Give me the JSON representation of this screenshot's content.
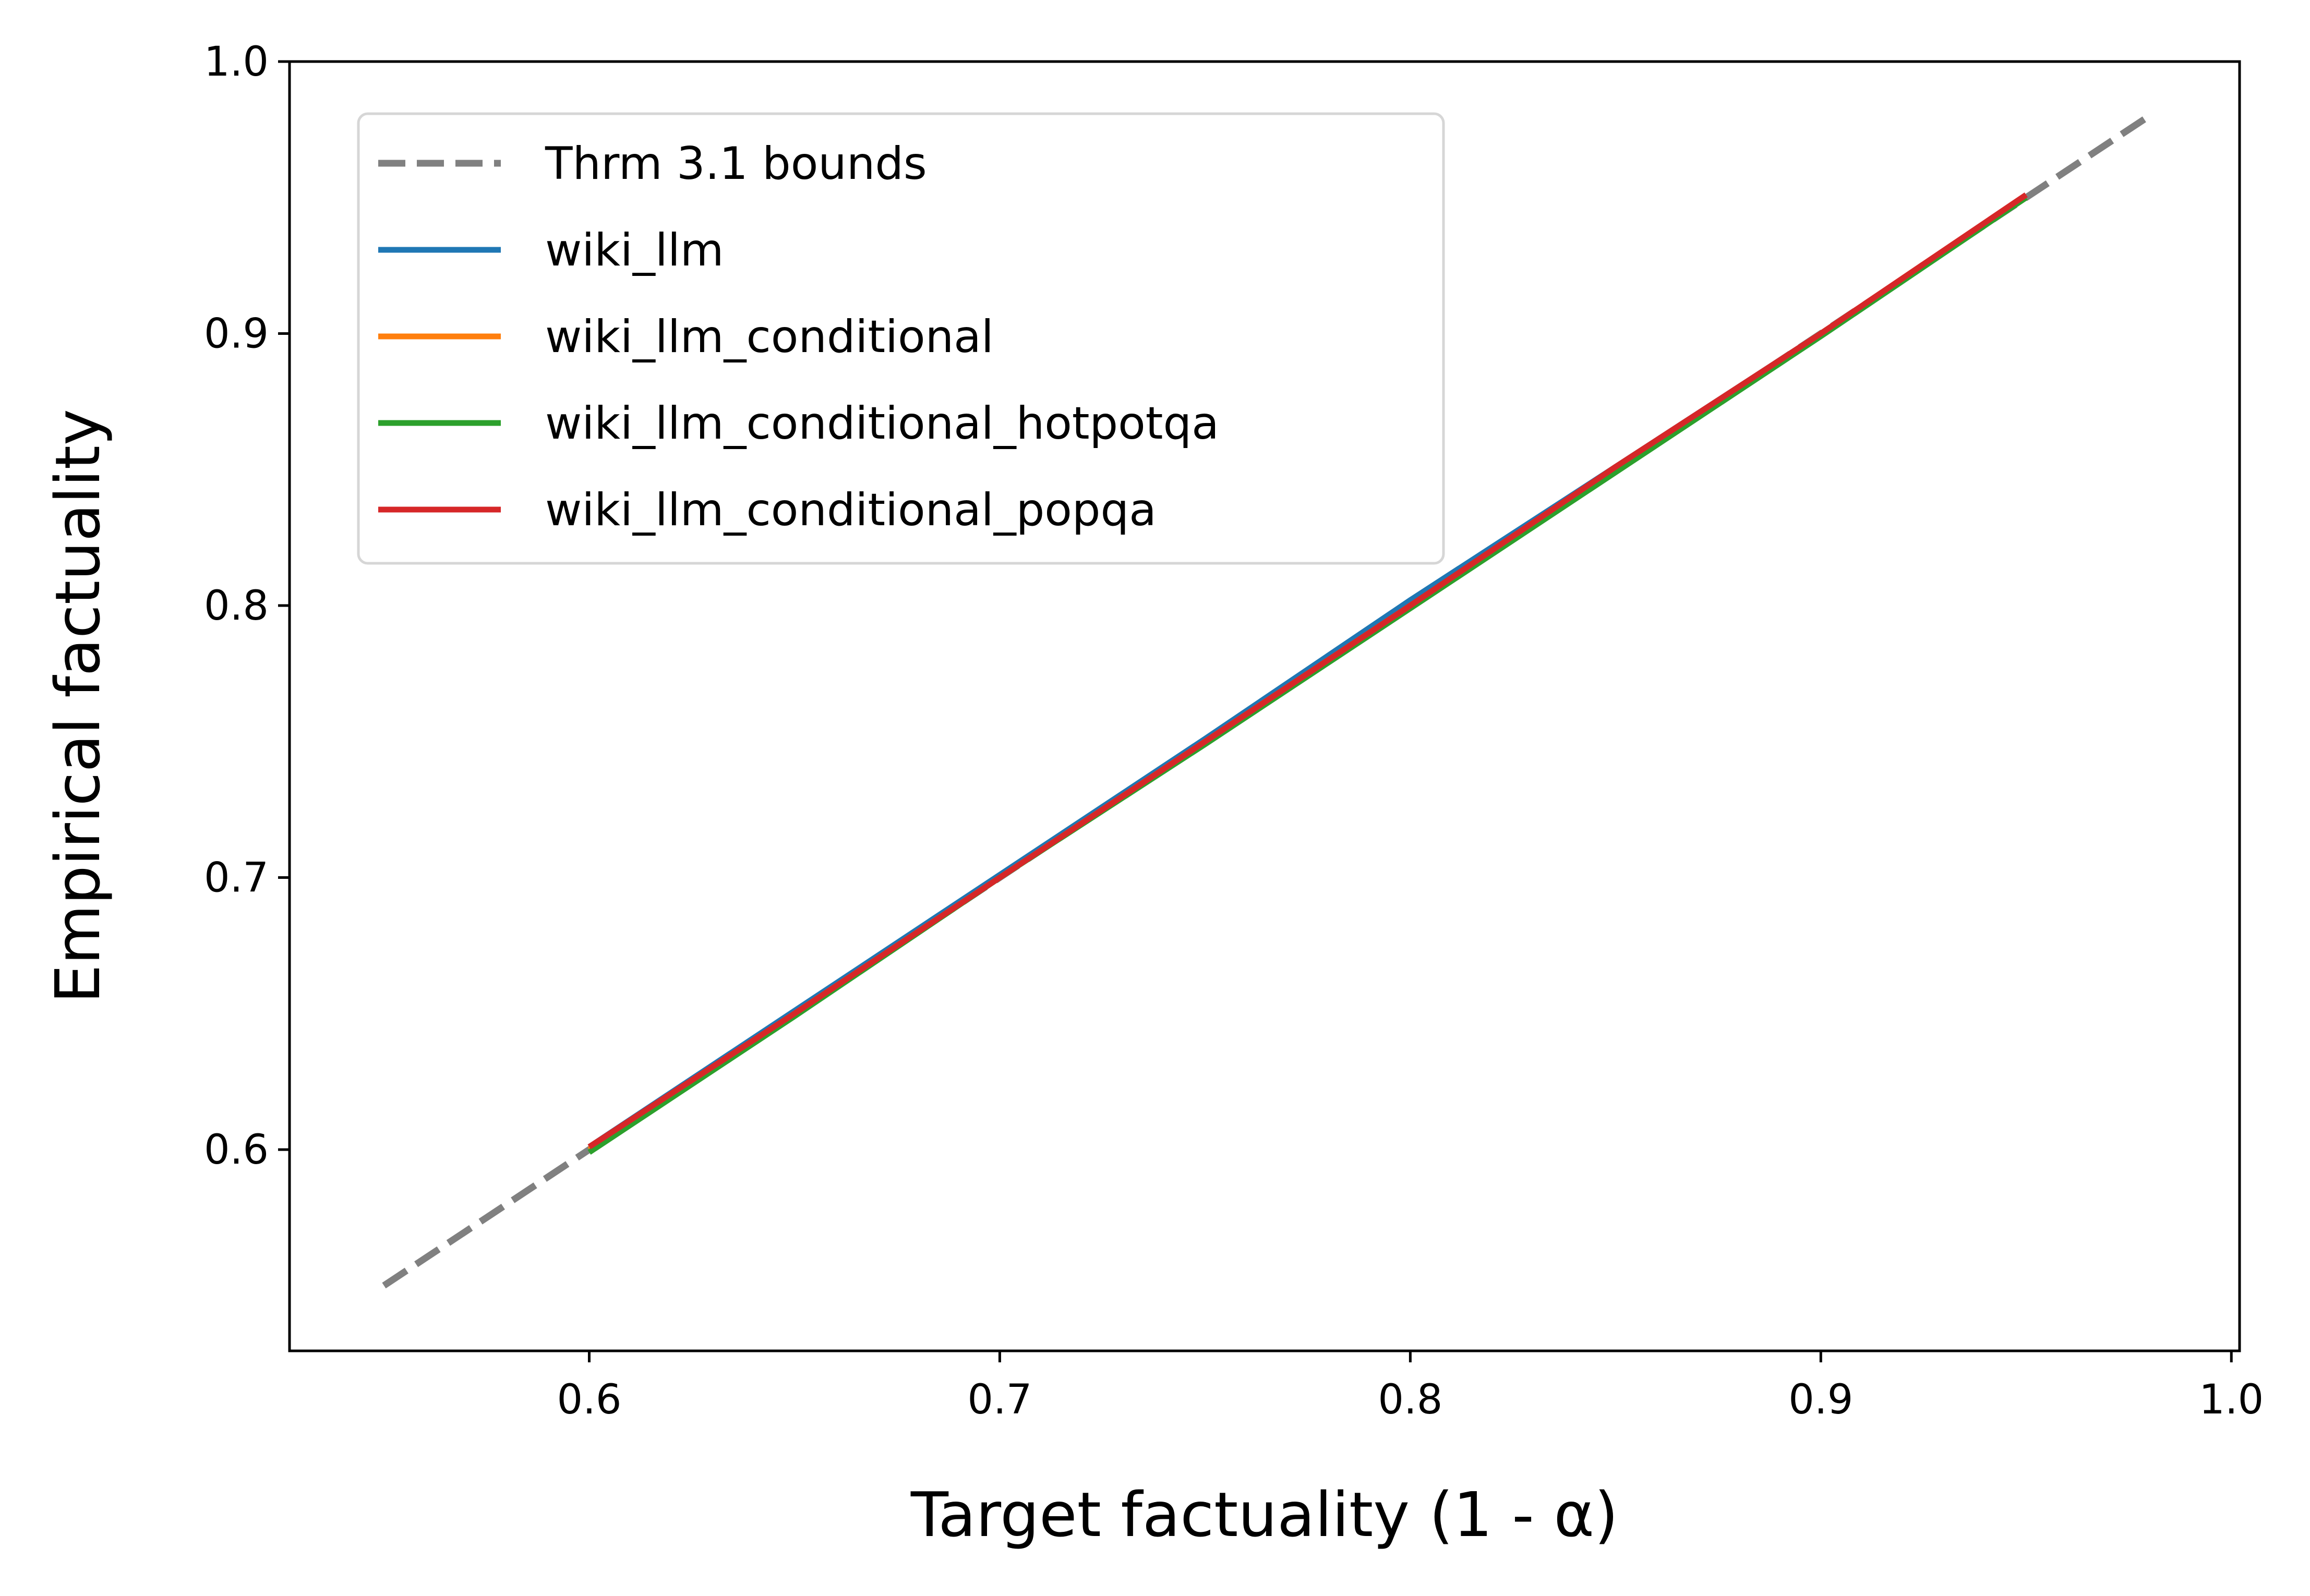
{
  "chart_data": {
    "type": "line",
    "xlabel": "Target factuality (1 - α)",
    "ylabel": "Empirical factuality",
    "xlim": [
      0.527,
      1.002
    ],
    "ylim": [
      0.526,
      1.0
    ],
    "xticks": [
      0.6,
      0.7,
      0.8,
      0.9,
      1.0
    ],
    "yticks": [
      0.6,
      0.7,
      0.8,
      0.9,
      1.0
    ],
    "xtick_labels": [
      "0.6",
      "0.7",
      "0.8",
      "0.9",
      "1.0"
    ],
    "ytick_labels": [
      "0.6",
      "0.7",
      "0.8",
      "0.9",
      "1.0"
    ],
    "grid": false,
    "legend_position": "upper-left",
    "series": [
      {
        "name": "Thrm 3.1 bounds",
        "color": "#808080",
        "style": "dashed",
        "x": [
          0.55,
          0.98
        ],
        "y": [
          0.55,
          0.98
        ]
      },
      {
        "name": "wiki_llm",
        "color": "#1f77b4",
        "style": "solid",
        "x": [
          0.6,
          0.65,
          0.7,
          0.75,
          0.8,
          0.85,
          0.9,
          0.95
        ],
        "y": [
          0.601,
          0.651,
          0.701,
          0.751,
          0.802,
          0.851,
          0.9,
          0.95
        ]
      },
      {
        "name": "wiki_llm_conditional",
        "color": "#ff7f0e",
        "style": "solid",
        "x": [
          0.6,
          0.65,
          0.7,
          0.75,
          0.8,
          0.85,
          0.9,
          0.95
        ],
        "y": [
          0.6,
          0.65,
          0.7,
          0.75,
          0.8,
          0.85,
          0.9,
          0.95
        ]
      },
      {
        "name": "wiki_llm_conditional_hotpotqa",
        "color": "#2ca02c",
        "style": "solid",
        "x": [
          0.6,
          0.65,
          0.7,
          0.75,
          0.8,
          0.85,
          0.9,
          0.95
        ],
        "y": [
          0.599,
          0.649,
          0.7,
          0.749,
          0.799,
          0.849,
          0.899,
          0.95
        ]
      },
      {
        "name": "wiki_llm_conditional_popqa",
        "color": "#d62728",
        "style": "solid",
        "x": [
          0.6,
          0.65,
          0.7,
          0.75,
          0.8,
          0.85,
          0.9,
          0.95
        ],
        "y": [
          0.601,
          0.65,
          0.7,
          0.75,
          0.8,
          0.851,
          0.9,
          0.951
        ]
      }
    ]
  }
}
